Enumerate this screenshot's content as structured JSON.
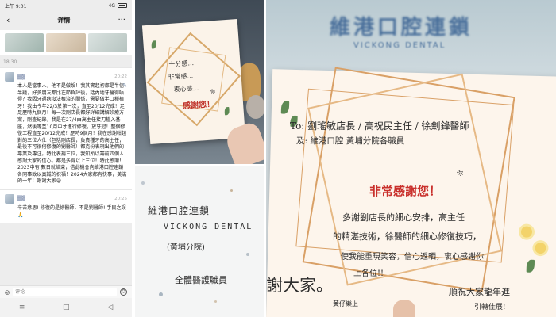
{
  "phone": {
    "status": {
      "time": "上午 9:01",
      "signal": "4G"
    },
    "nav": {
      "title": "详情",
      "more": "···"
    },
    "timestamp": "18:30",
    "comments": [
      {
        "time": "20:22",
        "text": "本人是當事人，他不是做娛！我其實起初都是半信半疑，好多朋友都比左節負評後，話內地牙醫得唔得？我因牙週病沒法根治的關係，需要做半口種植牙！我由今年22/3於第一次，直至20/12完成！足足歷時九個月！每一次剛店長都好詳細講解診療方案，剛查紀錄，我是在27/4由高主任接刀植入基座，然後等至10月中才進行修復，放牙冠！整個修復工程直至20/12完成！歷時9個月！我在感謝咁趟對的三位人仕（包括剛店長，負責種牙的高主任，最後不可很何修復的劉醫師）都克份表現出他們的專業及專注。特此表揚三位，我知所以籌前四個人感謝大家的信心，都是多得以上三位！特此感謝！2023中有 數日就結束，借此機會向維港口腔連鎖各同事致以真誠的祝福！2024大家都有快事，美滿的一年！謝謝大家😀"
      },
      {
        "time": "20:25",
        "text": "辛苦意思! 修復的是徐醫師，不是劉醫師! 手民之誤🙏"
      }
    ],
    "input_placeholder": "评论"
  },
  "card_small": {
    "line1": "十分感...",
    "line2": "非常感...",
    "line3": "衷心感...",
    "line4": "感謝您！",
    "sig": "你"
  },
  "signature_photo": {
    "line1": "維港口腔連鎖",
    "line2": "VICKONG DENTAL",
    "line3": "(黃埔分院)",
    "line4": "全體醫護職員"
  },
  "big_photo": {
    "sign_main": "維港口腔連鎖",
    "sign_sub": "VICKONG DENTAL",
    "to_line": "To: 劉瑤敏店長 / 高祝民主任 / 徐劍鋒醫師",
    "dept_line": "及: 維港口腔 黃埔分院各職員",
    "sig_small": "你",
    "thanks": "非常感謝您！",
    "body1": "多謝劉店長的細心安排，高主任",
    "body2": "的精湛技術，徐醫師的細心修復技巧，",
    "body3": "使我能重現笑容，信心返晒，衷心感謝你",
    "body4": "上各位!!",
    "big_text": "謝大家。",
    "closing1": "順祝大家龍年進",
    "closing2": "引轉佳展!",
    "signer": "黃仔樂上"
  }
}
